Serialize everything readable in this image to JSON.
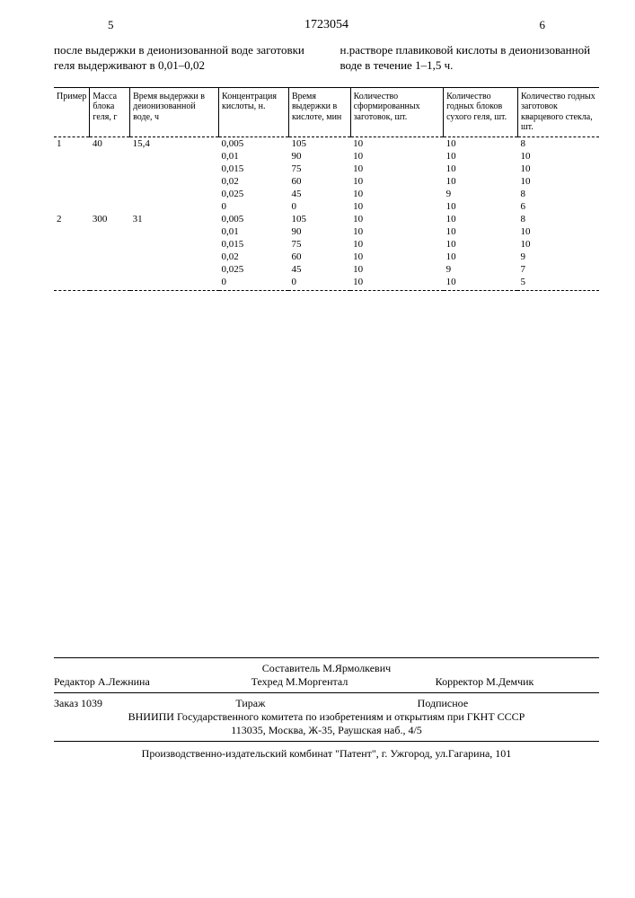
{
  "header": {
    "left_page": "5",
    "doc_number": "1723054",
    "right_page": "6"
  },
  "intro": {
    "left": "после выдержки в деионизованной воде заготовки геля выдерживают в 0,01–0,02",
    "right": "н.растворе плавиковой кислоты в деионизованной воде в течение 1–1,5 ч."
  },
  "table": {
    "headers": [
      "Пример",
      "Масса блока геля, г",
      "Время выдержки в деионизованной воде, ч",
      "Концентрация кислоты, н.",
      "Время выдержки в кислоте, мин",
      "Количество сформированных заготовок, шт.",
      "Количество годных блоков сухого геля, шт.",
      "Количество годных заготовок кварцевого стекла, шт."
    ],
    "rows": [
      [
        "1",
        "40",
        "15,4",
        "0,005",
        "105",
        "10",
        "10",
        "8"
      ],
      [
        "",
        "",
        "",
        "0,01",
        "90",
        "10",
        "10",
        "10"
      ],
      [
        "",
        "",
        "",
        "0,015",
        "75",
        "10",
        "10",
        "10"
      ],
      [
        "",
        "",
        "",
        "0,02",
        "60",
        "10",
        "10",
        "10"
      ],
      [
        "",
        "",
        "",
        "0,025",
        "45",
        "10",
        "9",
        "8"
      ],
      [
        "",
        "",
        "",
        "0",
        "0",
        "10",
        "10",
        "6"
      ],
      [
        "2",
        "300",
        "31",
        "0,005",
        "105",
        "10",
        "10",
        "8"
      ],
      [
        "",
        "",
        "",
        "0,01",
        "90",
        "10",
        "10",
        "10"
      ],
      [
        "",
        "",
        "",
        "0,015",
        "75",
        "10",
        "10",
        "10"
      ],
      [
        "",
        "",
        "",
        "0,02",
        "60",
        "10",
        "10",
        "9"
      ],
      [
        "",
        "",
        "",
        "0,025",
        "45",
        "10",
        "9",
        "7"
      ],
      [
        "",
        "",
        "",
        "0",
        "0",
        "10",
        "10",
        "5"
      ]
    ]
  },
  "credits": {
    "compiler": "Составитель М.Ярмолкевич",
    "editor": "Редактор А.Лежнина",
    "tech_editor": "Техред М.Моргентал",
    "corrector": "Корректор М.Демчик"
  },
  "biblio": {
    "order": "Заказ 1039",
    "tirazh": "Тираж",
    "subscription": "Подписное",
    "line2": "ВНИИПИ Государственного комитета по изобретениям и открытиям при ГКНТ СССР",
    "line3": "113035, Москва, Ж-35, Раушская наб., 4/5"
  },
  "printer": "Производственно-издательский комбинат \"Патент\", г. Ужгород, ул.Гагарина, 101"
}
